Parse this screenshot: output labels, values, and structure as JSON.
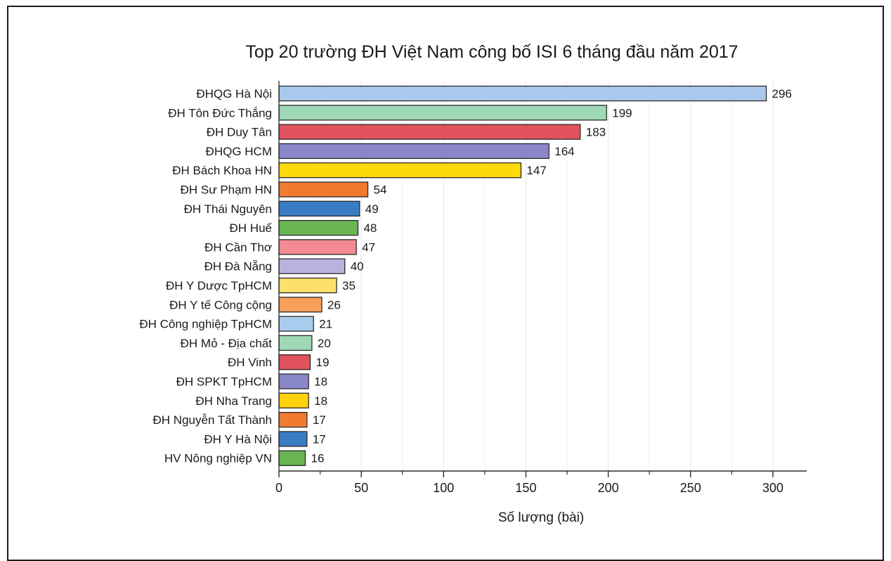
{
  "chart_data": {
    "type": "bar",
    "orientation": "horizontal",
    "title": "Top 20 trường ĐH Việt Nam công bố ISI 6 tháng đầu năm 2017",
    "xlabel": "Số lượng (bài)",
    "ylabel": "",
    "xlim": [
      0,
      318
    ],
    "xticks": [
      0,
      50,
      100,
      150,
      200,
      250,
      300
    ],
    "grid": true,
    "legend": "none",
    "categories": [
      "ĐHQG Hà Nội",
      "ĐH Tôn Đức Thắng",
      "ĐH Duy Tân",
      "ĐHQG HCM",
      "ĐH Bách Khoa HN",
      "ĐH Sư Phạm HN",
      "ĐH Thái Nguyên",
      "ĐH Huế",
      "ĐH Cần Thơ",
      "ĐH Đà Nẵng",
      "ĐH Y Dược TpHCM",
      "ĐH Y tế Công cộng",
      "ĐH Công nghiệp TpHCM",
      "ĐH Mỏ - Địa chất",
      "ĐH Vinh",
      "ĐH SPKT TpHCM",
      "ĐH Nha Trang",
      "ĐH Nguyễn Tất Thành",
      "ĐH Y Hà Nội",
      "HV Nông nghiệp VN"
    ],
    "values": [
      296,
      199,
      183,
      164,
      147,
      54,
      49,
      48,
      47,
      40,
      35,
      26,
      21,
      20,
      19,
      18,
      18,
      17,
      17,
      16
    ],
    "colors": [
      "#a9c9ec",
      "#9fd8b5",
      "#e0525d",
      "#8a87c9",
      "#fdd90a",
      "#f07a30",
      "#3a7dc4",
      "#6ab554",
      "#f38a93",
      "#b7b3de",
      "#fde06a",
      "#f8a05a",
      "#a9cbee",
      "#9fd8b5",
      "#e0525d",
      "#8a87c9",
      "#fdd20a",
      "#f07a30",
      "#3a7dc4",
      "#6ab554"
    ]
  }
}
